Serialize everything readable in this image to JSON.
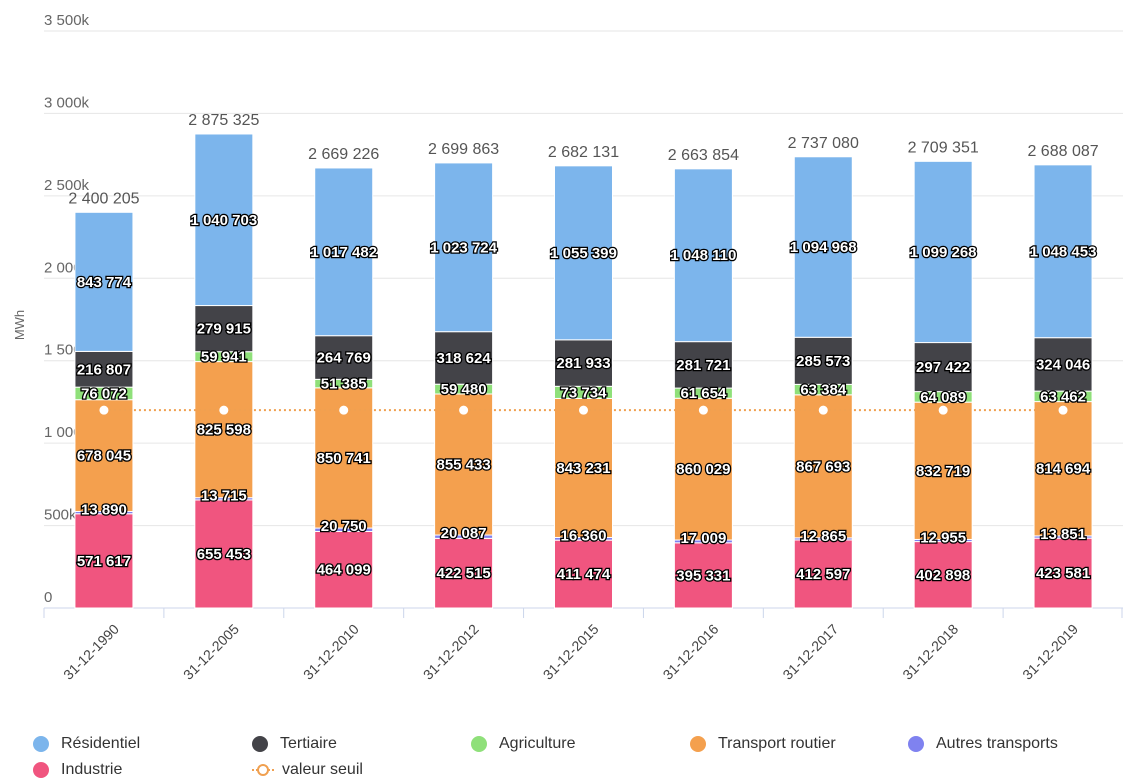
{
  "chart_data": {
    "type": "bar",
    "stacked": true,
    "ylabel": "MWh",
    "ylim": [
      0,
      3500000
    ],
    "yticks": [
      {
        "value": 0,
        "label": "0"
      },
      {
        "value": 500000,
        "label": "500k"
      },
      {
        "value": 1000000,
        "label": "1 000k"
      },
      {
        "value": 1500000,
        "label": "1 500k"
      },
      {
        "value": 2000000,
        "label": "2 000k"
      },
      {
        "value": 2500000,
        "label": "2 500k"
      },
      {
        "value": 3000000,
        "label": "3 000k"
      },
      {
        "value": 3500000,
        "label": "3 500k"
      }
    ],
    "grid": true,
    "legend_position": "bottom",
    "categories": [
      "31-12-1990",
      "31-12-2005",
      "31-12-2010",
      "31-12-2012",
      "31-12-2015",
      "31-12-2016",
      "31-12-2017",
      "31-12-2018",
      "31-12-2019"
    ],
    "series": [
      {
        "name": "Industrie",
        "color": "#f0557f",
        "values": [
          571617,
          655453,
          464099,
          422515,
          411474,
          395331,
          412597,
          402898,
          423581
        ],
        "labels": [
          "571 617",
          "655 453",
          "464 099",
          "422 515",
          "411 474",
          "395 331",
          "412 597",
          "402 898",
          "423 581"
        ]
      },
      {
        "name": "Autres transports",
        "color": "#7f82f0",
        "values": [
          13890,
          13715,
          20750,
          20087,
          16360,
          17009,
          12865,
          12955,
          13851
        ],
        "labels": [
          "13 890",
          "13 715",
          "20 750",
          "20 087",
          "16 360",
          "17 009",
          "12 865",
          "12 955",
          "13 851"
        ]
      },
      {
        "name": "Transport routier",
        "color": "#f4a04e",
        "values": [
          678045,
          825598,
          850741,
          855433,
          843231,
          860029,
          867693,
          832719,
          814694
        ],
        "labels": [
          "678 045",
          "825 598",
          "850 741",
          "855 433",
          "843 231",
          "860 029",
          "867 693",
          "832 719",
          "814 694"
        ]
      },
      {
        "name": "Agriculture",
        "color": "#8fe07a",
        "values": [
          76072,
          59941,
          51385,
          59480,
          73734,
          61654,
          63384,
          64089,
          63462
        ],
        "labels": [
          "76 072",
          "59 941",
          "51 385",
          "59 480",
          "73 734",
          "61 654",
          "63 384",
          "64 089",
          "63 462"
        ]
      },
      {
        "name": "Tertiaire",
        "color": "#434348",
        "values": [
          216807,
          279915,
          264769,
          318624,
          281933,
          281721,
          285573,
          297422,
          324046
        ],
        "labels": [
          "216 807",
          "279 915",
          "264 769",
          "318 624",
          "281 933",
          "281 721",
          "285 573",
          "297 422",
          "324 046"
        ]
      },
      {
        "name": "Résidentiel",
        "color": "#7cb5ec",
        "values": [
          843774,
          1040703,
          1017482,
          1023724,
          1055399,
          1048110,
          1094968,
          1099268,
          1048453
        ],
        "labels": [
          "843 774",
          "1 040 703",
          "1 017 482",
          "1 023 724",
          "1 055 399",
          "1 048 110",
          "1 094 968",
          "1 099 268",
          "1 048 453"
        ]
      }
    ],
    "totals": [
      "2 400 205",
      "2 875 325",
      "2 669 226",
      "2 699 863",
      "2 682 131",
      "2 663 854",
      "2 737 080",
      "2 709 351",
      "2 688 087"
    ],
    "threshold": {
      "name": "valeur seuil",
      "color": "#f0a050",
      "value": 1200000
    }
  },
  "legend": {
    "items": [
      {
        "label": "Résidentiel",
        "color": "#7cb5ec",
        "kind": "circle"
      },
      {
        "label": "Tertiaire",
        "color": "#434348",
        "kind": "circle"
      },
      {
        "label": "Agriculture",
        "color": "#8fe07a",
        "kind": "circle"
      },
      {
        "label": "Transport routier",
        "color": "#f4a04e",
        "kind": "circle"
      },
      {
        "label": "Autres transports",
        "color": "#7f82f0",
        "kind": "circle"
      },
      {
        "label": "Industrie",
        "color": "#f0557f",
        "kind": "circle"
      },
      {
        "label": "valeur seuil",
        "color": "#f0a050",
        "kind": "line-marker"
      }
    ]
  }
}
